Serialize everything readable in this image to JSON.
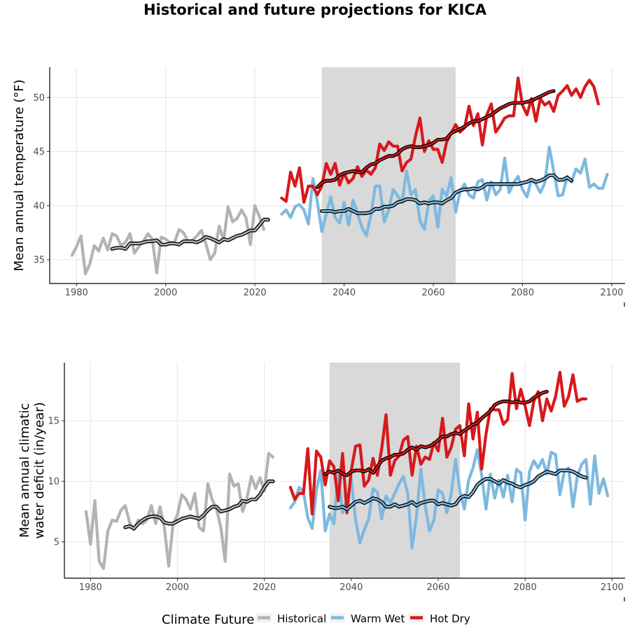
{
  "title": "Historical and future projections for KICA",
  "legend": {
    "title": "Climate Future",
    "items": [
      {
        "label": "Historical",
        "color": "#b3b3b3"
      },
      {
        "label": "Warm Wet",
        "color": "#7db9e0"
      },
      {
        "label": "Hot Dry",
        "color": "#d7191c"
      }
    ]
  },
  "chart_data": [
    {
      "type": "line",
      "ylabel": "Mean annual temperature (°F)",
      "xlabel": "",
      "xlim": [
        1974,
        2103
      ],
      "ylim": [
        32.8,
        52.8
      ],
      "xticks": [
        1980,
        2000,
        2020,
        2040,
        2060,
        2080,
        2100
      ],
      "yticks": [
        35,
        40,
        45,
        50
      ],
      "grid": true,
      "shaded_period": [
        2035,
        2065
      ],
      "series": [
        {
          "name": "Historical",
          "color": "#b3b3b3",
          "x_start": 1979,
          "values": [
            35.4,
            36.2,
            37.2,
            33.7,
            34.6,
            36.3,
            35.8,
            37.0,
            35.9,
            37.4,
            37.2,
            36.3,
            36.6,
            37.4,
            35.6,
            36.2,
            36.7,
            37.4,
            36.9,
            33.8,
            37.1,
            36.9,
            36.6,
            36.6,
            37.8,
            37.5,
            36.7,
            36.8,
            37.2,
            37.7,
            36.5,
            35.0,
            35.6,
            38.1,
            36.8,
            39.9,
            38.5,
            38.8,
            39.6,
            38.9,
            36.4,
            40.0,
            39.0,
            37.8
          ]
        },
        {
          "name": "Warm Wet",
          "color": "#7db9e0",
          "x_start": 2026,
          "values": [
            39.2,
            39.6,
            38.9,
            39.9,
            40.1,
            39.6,
            38.3,
            42.5,
            40.4,
            37.6,
            39.2,
            40.8,
            38.9,
            38.4,
            40.3,
            38.2,
            40.5,
            39.3,
            38.0,
            37.2,
            39.1,
            41.8,
            41.8,
            38.5,
            39.6,
            41.5,
            40.9,
            40.3,
            43.2,
            41.0,
            41.5,
            38.6,
            37.8,
            40.4,
            40.9,
            38.0,
            41.5,
            40.9,
            42.6,
            39.4,
            41.3,
            42.0,
            41.0,
            40.7,
            42.2,
            42.4,
            40.5,
            42.2,
            41.0,
            41.5,
            44.4,
            41.2,
            42.1,
            42.7,
            41.5,
            40.8,
            42.4,
            42.0,
            41.2,
            42.1,
            45.4,
            43.2,
            40.9,
            41.0,
            42.7,
            42.2,
            43.4,
            43.0,
            44.3,
            41.7,
            42.0,
            41.6,
            41.6,
            42.9
          ]
        },
        {
          "name": "Hot Dry",
          "color": "#d7191c",
          "x_start": 2026,
          "values": [
            40.7,
            40.4,
            43.1,
            41.8,
            43.5,
            40.3,
            41.8,
            41.8,
            41.0,
            41.8,
            43.9,
            42.9,
            43.9,
            41.9,
            43.0,
            42.1,
            42.5,
            43.6,
            42.7,
            43.3,
            42.9,
            43.5,
            45.7,
            45.1,
            45.9,
            45.5,
            45.5,
            43.2,
            44.0,
            44.3,
            46.4,
            48.1,
            45.0,
            46.0,
            45.2,
            45.2,
            44.0,
            45.9,
            46.7,
            47.5,
            46.8,
            47.2,
            49.2,
            47.4,
            48.5,
            45.6,
            48.4,
            49.4,
            46.8,
            47.4,
            48.1,
            48.3,
            48.3,
            51.8,
            49.3,
            48.4,
            49.9,
            47.8,
            49.9,
            49.3,
            49.6,
            48.7,
            50.2,
            50.6,
            51.1,
            50.2,
            50.8,
            50.0,
            51.0,
            51.6,
            51.0,
            49.4
          ]
        },
        {
          "name": "Historical smoothed",
          "color": "#000000",
          "x_start": 1988,
          "values": [
            36.0,
            36.1,
            36.1,
            36.0,
            36.5,
            36.5,
            36.5,
            36.6,
            36.7,
            36.7,
            36.8,
            36.4,
            36.4,
            36.5,
            36.5,
            36.4,
            36.7,
            36.7,
            36.7,
            36.6,
            36.8,
            37.1,
            37.0,
            36.8,
            36.6,
            36.9,
            36.8,
            37.0,
            37.2,
            37.3,
            37.5,
            37.7,
            37.7,
            38.2,
            38.7,
            38.7
          ]
        },
        {
          "name": "Warm Wet smoothed",
          "color": "#000000",
          "x_start": 2035,
          "values": [
            39.5,
            39.5,
            39.5,
            39.4,
            39.5,
            39.5,
            39.7,
            39.5,
            39.3,
            39.3,
            39.3,
            39.4,
            39.7,
            39.7,
            39.9,
            39.9,
            40.0,
            40.3,
            40.4,
            40.6,
            40.6,
            40.5,
            40.2,
            40.3,
            40.2,
            40.3,
            40.3,
            40.2,
            40.5,
            40.7,
            41.2,
            41.4,
            41.5,
            41.5,
            41.6,
            41.5,
            41.7,
            42.0,
            42.0,
            42.0,
            42.0,
            42.0,
            42.0,
            42.0,
            42.0,
            42.1,
            42.2,
            42.4,
            42.2,
            42.3,
            42.5,
            42.8,
            42.8,
            42.4,
            42.4,
            42.6,
            42.3
          ]
        },
        {
          "name": "Hot Dry smoothed",
          "color": "#000000",
          "x_start": 2034,
          "values": [
            41.7,
            42.1,
            42.3,
            42.3,
            42.4,
            42.8,
            43.0,
            43.1,
            43.2,
            43.1,
            43.1,
            43.5,
            43.8,
            43.9,
            44.2,
            44.4,
            44.6,
            44.6,
            44.8,
            45.2,
            45.4,
            45.5,
            45.4,
            45.4,
            45.5,
            45.6,
            45.8,
            46.1,
            46.1,
            46.2,
            46.7,
            46.9,
            47.1,
            47.3,
            47.6,
            47.8,
            47.8,
            48.0,
            48.2,
            48.4,
            48.7,
            49.0,
            49.2,
            49.4,
            49.5,
            49.5,
            49.5,
            49.6,
            49.7,
            49.9,
            50.1,
            50.3,
            50.5,
            50.6
          ]
        }
      ]
    },
    {
      "type": "line",
      "ylabel": "Mean annual climatic water deficit (in/year)",
      "ylabel_lines": [
        "Mean annual climatic",
        "water deficit (in/year)"
      ],
      "xlabel": "",
      "xlim": [
        1974,
        2103
      ],
      "ylim": [
        2.0,
        19.8
      ],
      "xticks": [
        1980,
        2000,
        2020,
        2040,
        2060,
        2080,
        2100
      ],
      "yticks": [
        5,
        10,
        15
      ],
      "grid": true,
      "shaded_period": [
        2035,
        2065
      ],
      "series": [
        {
          "name": "Historical",
          "color": "#b3b3b3",
          "x_start": 1979,
          "values": [
            7.5,
            4.8,
            8.4,
            3.4,
            2.8,
            5.9,
            6.8,
            6.7,
            7.6,
            8.0,
            6.6,
            6.0,
            6.8,
            6.5,
            6.8,
            8.0,
            6.5,
            7.9,
            6.2,
            3.0,
            6.5,
            7.2,
            8.9,
            8.5,
            7.7,
            9.0,
            6.2,
            5.9,
            9.8,
            8.5,
            7.7,
            6.2,
            3.4,
            10.6,
            9.6,
            9.8,
            7.5,
            8.6,
            10.4,
            9.4,
            10.3,
            9.2,
            12.3,
            12.0
          ]
        },
        {
          "name": "Warm Wet",
          "color": "#7db9e0",
          "x_start": 2026,
          "values": [
            7.8,
            8.3,
            9.5,
            9.1,
            7.0,
            6.1,
            9.3,
            10.9,
            5.9,
            7.3,
            6.5,
            10.6,
            7.4,
            8.5,
            10.2,
            6.8,
            4.9,
            6.0,
            6.9,
            9.4,
            9.1,
            6.9,
            8.8,
            8.2,
            9.0,
            9.8,
            10.4,
            9.0,
            4.5,
            7.1,
            11.0,
            8.0,
            5.9,
            6.8,
            9.3,
            9.0,
            7.4,
            9.0,
            11.8,
            9.2,
            7.7,
            10.1,
            11.1,
            12.6,
            10.5,
            7.7,
            10.6,
            8.6,
            10.1,
            8.7,
            10.5,
            8.3,
            11.0,
            10.7,
            6.8,
            10.8,
            11.7,
            11.1,
            11.8,
            10.6,
            12.4,
            12.2,
            8.9,
            10.8,
            11.1,
            7.9,
            10.4,
            11.4,
            11.8,
            8.1,
            12.1,
            9.0,
            10.2,
            8.8
          ]
        },
        {
          "name": "Hot Dry",
          "color": "#d7191c",
          "x_start": 2026,
          "values": [
            9.5,
            8.5,
            9.0,
            9.0,
            12.7,
            7.3,
            12.5,
            12.0,
            9.7,
            11.7,
            11.2,
            8.4,
            12.3,
            7.4,
            10.9,
            12.9,
            13.0,
            9.6,
            10.1,
            11.9,
            10.5,
            12.7,
            15.5,
            10.5,
            11.7,
            12.1,
            13.4,
            13.7,
            10.5,
            12.9,
            11.4,
            12.0,
            11.8,
            13.2,
            12.5,
            15.2,
            12.0,
            12.8,
            14.3,
            14.6,
            12.1,
            16.4,
            13.5,
            15.7,
            11.0,
            13.9,
            16.0,
            15.9,
            15.9,
            14.7,
            15.1,
            18.9,
            16.0,
            17.6,
            16.2,
            14.6,
            16.6,
            17.4,
            15.0,
            16.8,
            15.8,
            17.0,
            19.0,
            16.2,
            17.0,
            18.8,
            16.6,
            16.8,
            16.8
          ]
        },
        {
          "name": "Historical smoothed",
          "color": "#000000",
          "x_start": 1988,
          "values": [
            6.2,
            6.3,
            6.1,
            6.5,
            6.8,
            7.0,
            7.1,
            7.1,
            7.0,
            6.6,
            6.5,
            6.5,
            6.7,
            6.9,
            7.0,
            7.1,
            7.0,
            6.9,
            7.2,
            7.6,
            7.9,
            7.9,
            7.5,
            7.6,
            7.7,
            7.9,
            8.0,
            8.4,
            8.3,
            8.5,
            8.5,
            8.9,
            9.5,
            10.0,
            10.0
          ]
        },
        {
          "name": "Warm Wet smoothed",
          "color": "#000000",
          "x_start": 2035,
          "values": [
            7.9,
            7.8,
            7.8,
            7.9,
            7.7,
            8.0,
            8.3,
            8.4,
            8.2,
            8.4,
            8.6,
            8.5,
            8.3,
            7.9,
            7.9,
            8.1,
            7.9,
            8.0,
            8.1,
            8.3,
            8.0,
            8.2,
            8.3,
            8.4,
            8.4,
            8.1,
            8.2,
            8.1,
            8.0,
            8.1,
            8.6,
            8.8,
            8.7,
            9.1,
            9.7,
            10.0,
            10.2,
            10.2,
            10.0,
            9.8,
            10.1,
            9.9,
            9.8,
            9.6,
            9.5,
            9.7,
            9.8,
            10.0,
            10.4,
            10.6,
            10.8,
            10.7,
            10.6,
            10.9,
            10.9,
            10.9,
            10.8,
            10.6,
            10.4,
            10.3
          ]
        },
        {
          "name": "Hot Dry smoothed",
          "color": "#000000",
          "x_start": 2034,
          "values": [
            10.6,
            10.8,
            10.7,
            10.9,
            10.6,
            10.5,
            10.8,
            10.9,
            10.9,
            10.8,
            11.0,
            10.7,
            11.2,
            11.7,
            11.9,
            12.0,
            12.2,
            12.2,
            12.3,
            12.6,
            12.8,
            12.6,
            12.9,
            12.8,
            12.9,
            13.1,
            13.4,
            13.7,
            13.7,
            13.9,
            14.0,
            13.9,
            14.2,
            14.4,
            14.7,
            14.8,
            15.2,
            15.5,
            15.8,
            16.3,
            16.5,
            16.6,
            16.6,
            16.5,
            16.6,
            16.5,
            16.5,
            16.6,
            16.9,
            17.1,
            17.3,
            17.4
          ]
        }
      ]
    }
  ]
}
